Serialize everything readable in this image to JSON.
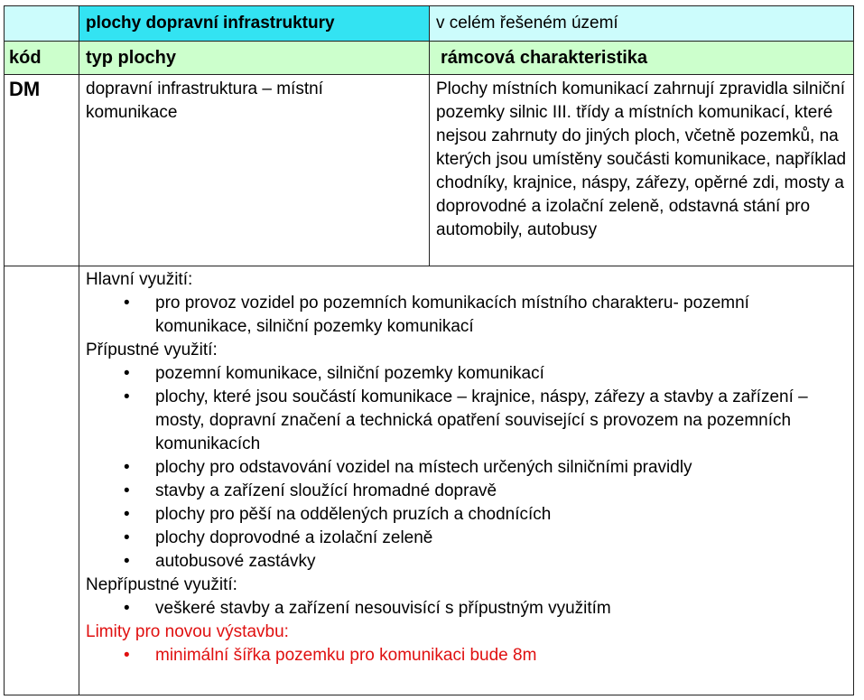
{
  "header": {
    "category": "plochy dopravní infrastruktury",
    "scope": "v celém řešeném území"
  },
  "columns": {
    "code": "kód",
    "type": "typ plochy",
    "characteristic": "rámcová charakteristika"
  },
  "row": {
    "code": "DM",
    "type": "dopravní infrastruktura – místní komunikace",
    "characteristic": "Plochy místních komunikací zahrnují zpravidla silniční pozemky silnic III. třídy a místních komunikací, které nejsou zahrnuty do jiných ploch, včetně pozemků, na kterých jsou umístěny součásti komunikace, například chodníky, krajnice, náspy, zářezy, opěrné zdi, mosty a doprovodné a izolační zeleně, odstavná stání pro automobily, autobusy"
  },
  "sections": [
    {
      "title": "Hlavní využití:",
      "items": [
        "pro provoz vozidel po pozemních komunikacích místního charakteru- pozemní komunikace, silniční pozemky komunikací"
      ]
    },
    {
      "title": "Přípustné využití:",
      "items": [
        "pozemní komunikace, silniční pozemky komunikací",
        "plochy, které jsou součástí komunikace – krajnice, náspy, zářezy a stavby a zařízení – mosty, dopravní značení a technická opatření související s provozem na pozemních komunikacích",
        "plochy pro odstavování vozidel na místech určených silničními pravidly",
        "stavby a zařízení sloužící hromadné dopravě",
        "plochy pro pěší na oddělených pruzích a chodnících",
        "plochy doprovodné a izolační zeleně",
        "autobusové zastávky"
      ]
    },
    {
      "title": "Nepřípustné využití:",
      "items": [
        "veškeré stavby a zařízení nesouvisící s přípustným využitím"
      ]
    },
    {
      "title": "Limity pro novou výstavbu:",
      "items": [
        "minimální šířka pozemku pro komunikaci bude 8m"
      ]
    }
  ],
  "colors": {
    "header_cyan": "#33e3f2",
    "header_light": "#ccfcfc",
    "column_header_green": "#ccffcc",
    "limits_red": "#e01010"
  }
}
